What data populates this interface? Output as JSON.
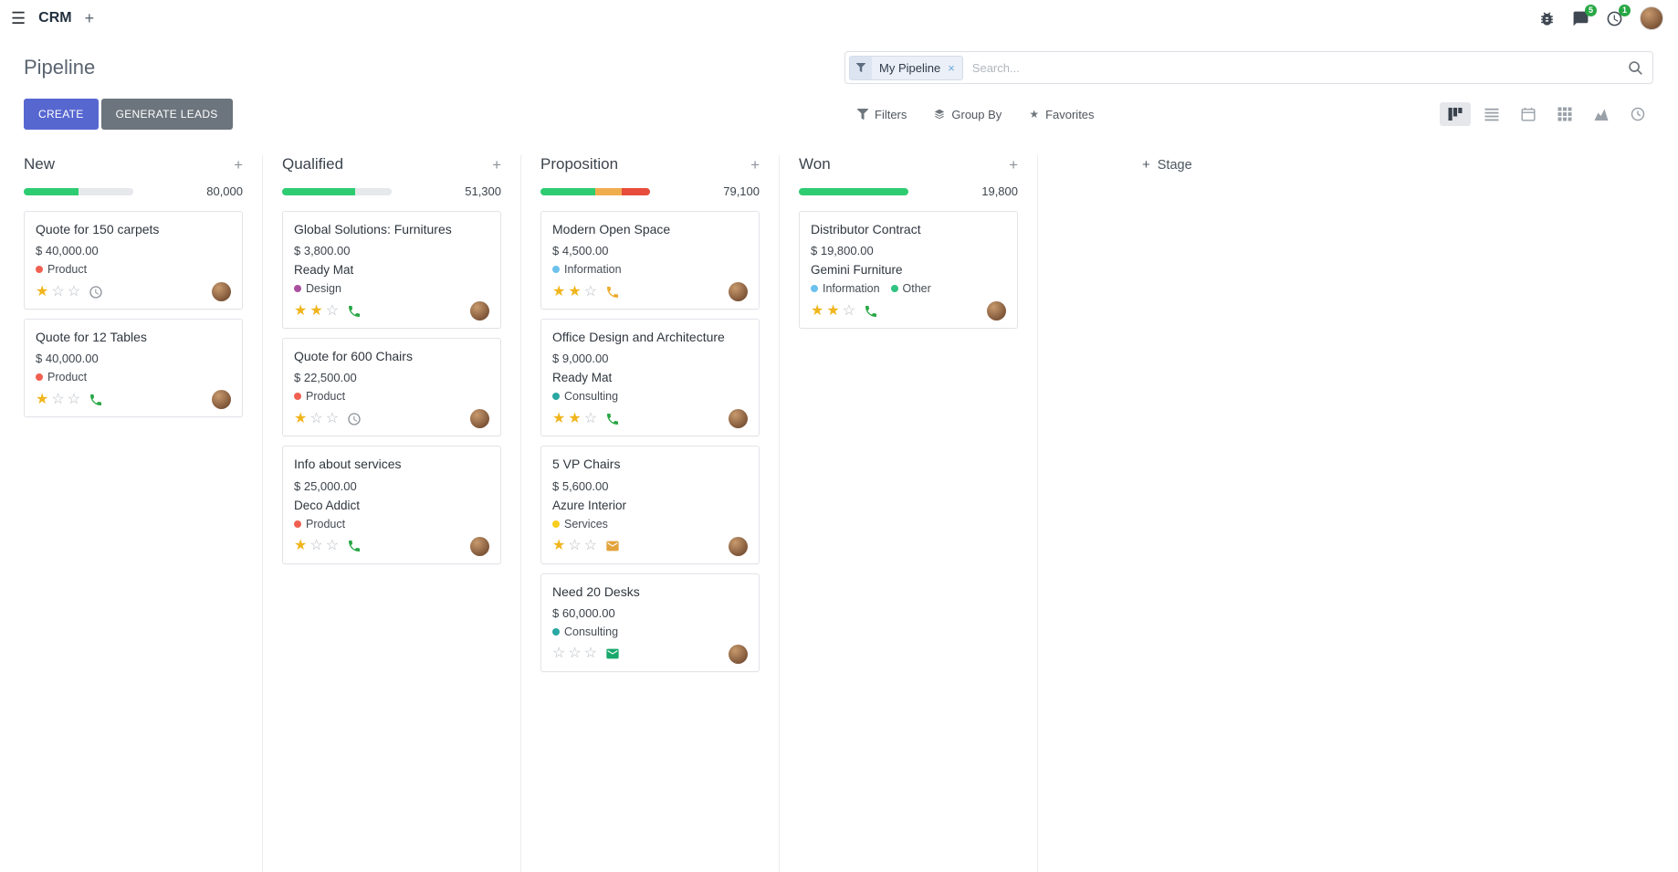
{
  "icons": {
    "hamburger": "☰",
    "plus": "+",
    "close": "×",
    "star": "★",
    "star_filled": "★",
    "star_empty": "☆"
  },
  "topbar": {
    "app_name": "CRM",
    "systray": {
      "messages_badge": "5",
      "activities_badge": "1"
    }
  },
  "control_panel": {
    "title": "Pipeline",
    "create_label": "CREATE",
    "generate_leads_label": "GENERATE LEADS",
    "search": {
      "facet_label": "My Pipeline",
      "placeholder": "Search..."
    },
    "filters_label": "Filters",
    "group_by_label": "Group By",
    "favorites_label": "Favorites",
    "view_switcher": [
      "kanban",
      "list",
      "calendar",
      "pivot",
      "graph",
      "activity"
    ],
    "active_view": "kanban"
  },
  "kanban": {
    "add_stage_label": "Stage",
    "columns": [
      {
        "name": "New",
        "counter": "80,000",
        "progress": [
          {
            "color": "#2ecc71",
            "pct": 50
          },
          {
            "color": "#e6e8eb",
            "pct": 50
          }
        ],
        "cards": [
          {
            "title": "Quote for 150 carpets",
            "amount": "$ 40,000.00",
            "company": "",
            "tags": [
              {
                "label": "Product",
                "color": "#f06050"
              }
            ],
            "stars": 1,
            "activity": {
              "icon": "clock",
              "color": "#8a9098"
            }
          },
          {
            "title": "Quote for 12 Tables",
            "amount": "$ 40,000.00",
            "company": "",
            "tags": [
              {
                "label": "Product",
                "color": "#f06050"
              }
            ],
            "stars": 1,
            "activity": {
              "icon": "phone",
              "color": "#28a745"
            }
          }
        ]
      },
      {
        "name": "Qualified",
        "counter": "51,300",
        "progress": [
          {
            "color": "#2ecc71",
            "pct": 66.5
          },
          {
            "color": "#e6e8eb",
            "pct": 33.5
          }
        ],
        "cards": [
          {
            "title": "Global Solutions: Furnitures",
            "amount": "$ 3,800.00",
            "company": "Ready Mat",
            "tags": [
              {
                "label": "Design",
                "color": "#a94fa0"
              }
            ],
            "stars": 2,
            "activity": {
              "icon": "phone",
              "color": "#28a745"
            }
          },
          {
            "title": "Quote for 600 Chairs",
            "amount": "$ 22,500.00",
            "company": "",
            "tags": [
              {
                "label": "Product",
                "color": "#f06050"
              }
            ],
            "stars": 1,
            "activity": {
              "icon": "clock",
              "color": "#8a9098"
            }
          },
          {
            "title": "Info about services",
            "amount": "$ 25,000.00",
            "company": "Deco Addict",
            "tags": [
              {
                "label": "Product",
                "color": "#f06050"
              }
            ],
            "stars": 1,
            "activity": {
              "icon": "phone",
              "color": "#28a745"
            }
          }
        ]
      },
      {
        "name": "Proposition",
        "counter": "79,100",
        "progress": [
          {
            "color": "#2ecc71",
            "pct": 50
          },
          {
            "color": "#f0ad4e",
            "pct": 24
          },
          {
            "color": "#e74c3c",
            "pct": 26
          }
        ],
        "cards": [
          {
            "title": "Modern Open Space",
            "amount": "$ 4,500.00",
            "company": "",
            "tags": [
              {
                "label": "Information",
                "color": "#6cc1ed"
              }
            ],
            "stars": 2,
            "activity": {
              "icon": "phone",
              "color": "#edab2f"
            }
          },
          {
            "title": "Office Design and Architecture",
            "amount": "$ 9,000.00",
            "company": "Ready Mat",
            "tags": [
              {
                "label": "Consulting",
                "color": "#2aa8a2"
              }
            ],
            "stars": 2,
            "activity": {
              "icon": "phone",
              "color": "#28a745"
            }
          },
          {
            "title": "5 VP Chairs",
            "amount": "$ 5,600.00",
            "company": "Azure Interior",
            "tags": [
              {
                "label": "Services",
                "color": "#f7cd1f"
              }
            ],
            "stars": 1,
            "activity": {
              "icon": "envelope",
              "color": "#e2a33c"
            }
          },
          {
            "title": "Need 20 Desks",
            "amount": "$ 60,000.00",
            "company": "",
            "tags": [
              {
                "label": "Consulting",
                "color": "#2aa8a2"
              }
            ],
            "stars": 0,
            "activity": {
              "icon": "envelope",
              "color": "#18a86b"
            }
          }
        ]
      },
      {
        "name": "Won",
        "counter": "19,800",
        "progress": [
          {
            "color": "#2ecc71",
            "pct": 100
          }
        ],
        "cards": [
          {
            "title": "Distributor Contract",
            "amount": "$ 19,800.00",
            "company": "Gemini Furniture",
            "tags": [
              {
                "label": "Information",
                "color": "#6cc1ed"
              },
              {
                "label": "Other",
                "color": "#30c381"
              }
            ],
            "stars": 2,
            "activity": {
              "icon": "phone",
              "color": "#28a745"
            }
          }
        ]
      }
    ]
  }
}
